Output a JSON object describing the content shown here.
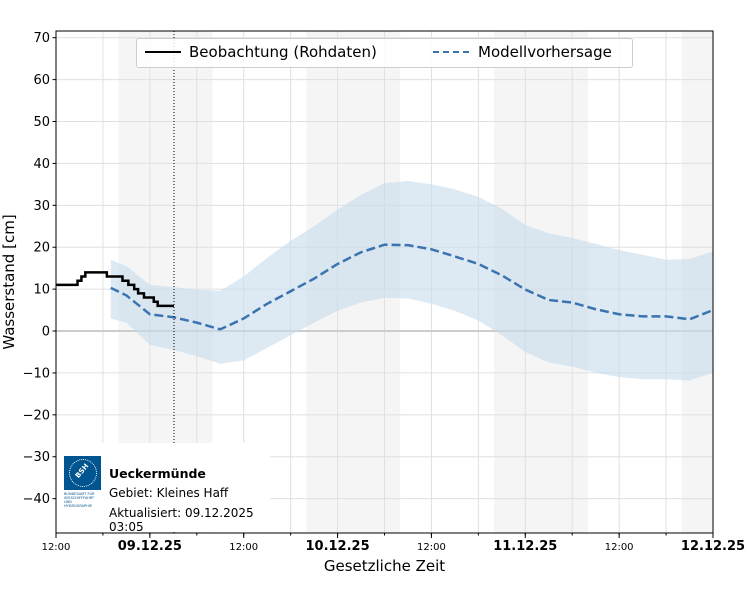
{
  "chart_data": {
    "type": "line",
    "xlabel": "Gesetzliche Zeit",
    "ylabel": "Wasserstand [cm]",
    "xlim": [
      "2025-12-08T12:00",
      "2025-12-12T00:00"
    ],
    "ylim": [
      -48.2,
      71.6
    ],
    "yticks": [
      -40,
      -30,
      -20,
      -10,
      0,
      10,
      20,
      30,
      40,
      50,
      60,
      70
    ],
    "ytick_labels": [
      "−40",
      "−30",
      "−20",
      "−10",
      "0",
      "10",
      "20",
      "30",
      "40",
      "50",
      "60",
      "70"
    ],
    "xticks": [
      {
        "t": "2025-12-08T12:00",
        "label": "12:00",
        "bold": false
      },
      {
        "t": "2025-12-09T00:00",
        "label": "09.12.25",
        "bold": true
      },
      {
        "t": "2025-12-09T12:00",
        "label": "12:00",
        "bold": false
      },
      {
        "t": "2025-12-10T00:00",
        "label": "10.12.25",
        "bold": true
      },
      {
        "t": "2025-12-10T12:00",
        "label": "12:00",
        "bold": false
      },
      {
        "t": "2025-12-11T00:00",
        "label": "11.12.25",
        "bold": true
      },
      {
        "t": "2025-12-11T12:00",
        "label": "12:00",
        "bold": false
      },
      {
        "t": "2025-12-12T00:00",
        "label": "12.12.25",
        "bold": true
      }
    ],
    "grid": true,
    "night_bands": [
      [
        "2025-12-08T20:00",
        "2025-12-09T08:00"
      ],
      [
        "2025-12-09T20:00",
        "2025-12-10T08:00"
      ],
      [
        "2025-12-10T20:00",
        "2025-12-11T08:00"
      ],
      [
        "2025-12-11T20:00",
        "2025-12-12T00:00"
      ]
    ],
    "now_marker": "2025-12-09T03:05",
    "legend": {
      "placement": "top-center",
      "entries": [
        "Beobachtung (Rohdaten)",
        "Modellvorhersage"
      ]
    },
    "series": [
      {
        "name": "Beobachtung (Rohdaten)",
        "style": "step",
        "color": "#000000",
        "points": [
          [
            "2025-12-08T12:00",
            11
          ],
          [
            "2025-12-08T14:45",
            12
          ],
          [
            "2025-12-08T15:15",
            13
          ],
          [
            "2025-12-08T15:45",
            14
          ],
          [
            "2025-12-08T18:30",
            13
          ],
          [
            "2025-12-08T20:30",
            12
          ],
          [
            "2025-12-08T21:15",
            11
          ],
          [
            "2025-12-08T22:00",
            10
          ],
          [
            "2025-12-08T22:30",
            9
          ],
          [
            "2025-12-08T23:15",
            8
          ],
          [
            "2025-12-09T00:30",
            7
          ],
          [
            "2025-12-09T01:00",
            6
          ],
          [
            "2025-12-09T03:05",
            6
          ]
        ]
      },
      {
        "name": "Modellvorhersage",
        "style": "dashed",
        "color": "#3a73b0",
        "band_color": "#c6dced",
        "times": [
          "2025-12-08T19:00",
          "2025-12-08T21:00",
          "2025-12-09T00:00",
          "2025-12-09T03:00",
          "2025-12-09T06:00",
          "2025-12-09T09:00",
          "2025-12-09T12:00",
          "2025-12-09T15:00",
          "2025-12-09T18:00",
          "2025-12-09T21:00",
          "2025-12-10T00:00",
          "2025-12-10T03:00",
          "2025-12-10T06:00",
          "2025-12-10T09:00",
          "2025-12-10T12:00",
          "2025-12-10T15:00",
          "2025-12-10T18:00",
          "2025-12-10T21:00",
          "2025-12-11T00:00",
          "2025-12-11T03:00",
          "2025-12-11T06:00",
          "2025-12-11T09:00",
          "2025-12-11T12:00",
          "2025-12-11T15:00",
          "2025-12-11T18:00",
          "2025-12-11T21:00",
          "2025-12-12T00:00"
        ],
        "values": [
          10.3,
          8.5,
          4,
          3.3,
          2,
          0.4,
          3,
          6.5,
          9.5,
          12.5,
          16,
          18.8,
          20.6,
          20.5,
          19.5,
          17.8,
          16,
          13.3,
          9.9,
          7.4,
          6.8,
          5.2,
          4,
          3.5,
          3.5,
          2.8,
          5
        ],
        "upper": [
          17,
          15.5,
          11,
          10.5,
          9.8,
          9.6,
          13,
          17.5,
          21.5,
          25,
          29,
          32.5,
          35.3,
          35.8,
          35,
          33.8,
          32,
          29.2,
          25.3,
          23.3,
          22.2,
          20.8,
          19.3,
          18.2,
          17,
          17.2,
          19
        ],
        "lower": [
          3,
          2,
          -3.3,
          -4.5,
          -6,
          -7.8,
          -7,
          -4,
          -1,
          2,
          4.8,
          6.8,
          7.9,
          7.8,
          6.5,
          4.8,
          2.5,
          -1,
          -5,
          -7.5,
          -8.5,
          -10,
          -11,
          -11.5,
          -11.5,
          -11.8,
          -10
        ]
      }
    ]
  },
  "info": {
    "station": "Ueckermünde",
    "area": "Gebiet: Kleines Haff",
    "updated": "Aktualisiert: 09.12.2025 03:05",
    "logo_text": "BSH",
    "logo_caption": "BUNDESAMT FÜR SEESCHIFFFAHRT UND HYDROGRAPHIE",
    "logo_color": "#00548f"
  }
}
